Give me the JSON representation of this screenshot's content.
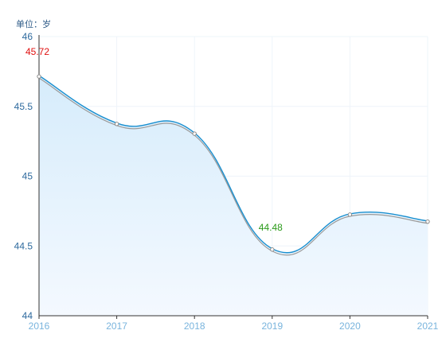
{
  "unit_label": "单位：岁",
  "colors": {
    "line": "#1a8fcf",
    "shadow_line": "#9a9a9a",
    "area_top": "#d6ecfb",
    "area_bottom": "#f4f9ff",
    "grid": "#eef4fa",
    "axis": "#333333",
    "y_tick_text": "#2e6a9e",
    "x_tick_text": "#79b4dd",
    "max_label": "#e01010",
    "min_label": "#2a9a1a"
  },
  "chart_data": {
    "type": "area",
    "x": [
      "2016",
      "2017",
      "2018",
      "2019",
      "2020",
      "2021"
    ],
    "series": [
      {
        "values": [
          45.72,
          45.38,
          45.31,
          44.48,
          44.73,
          44.68
        ]
      }
    ],
    "ylim": [
      44,
      46
    ],
    "yticks": [
      "44",
      "44.5",
      "45",
      "45.5",
      "46"
    ],
    "annotations": [
      {
        "text": "45.72",
        "x": "2016",
        "y": 45.72,
        "kind": "max"
      },
      {
        "text": "44.48",
        "x": "2019",
        "y": 44.48,
        "kind": "min"
      }
    ],
    "grid": true,
    "xlabel": "",
    "ylabel": ""
  }
}
